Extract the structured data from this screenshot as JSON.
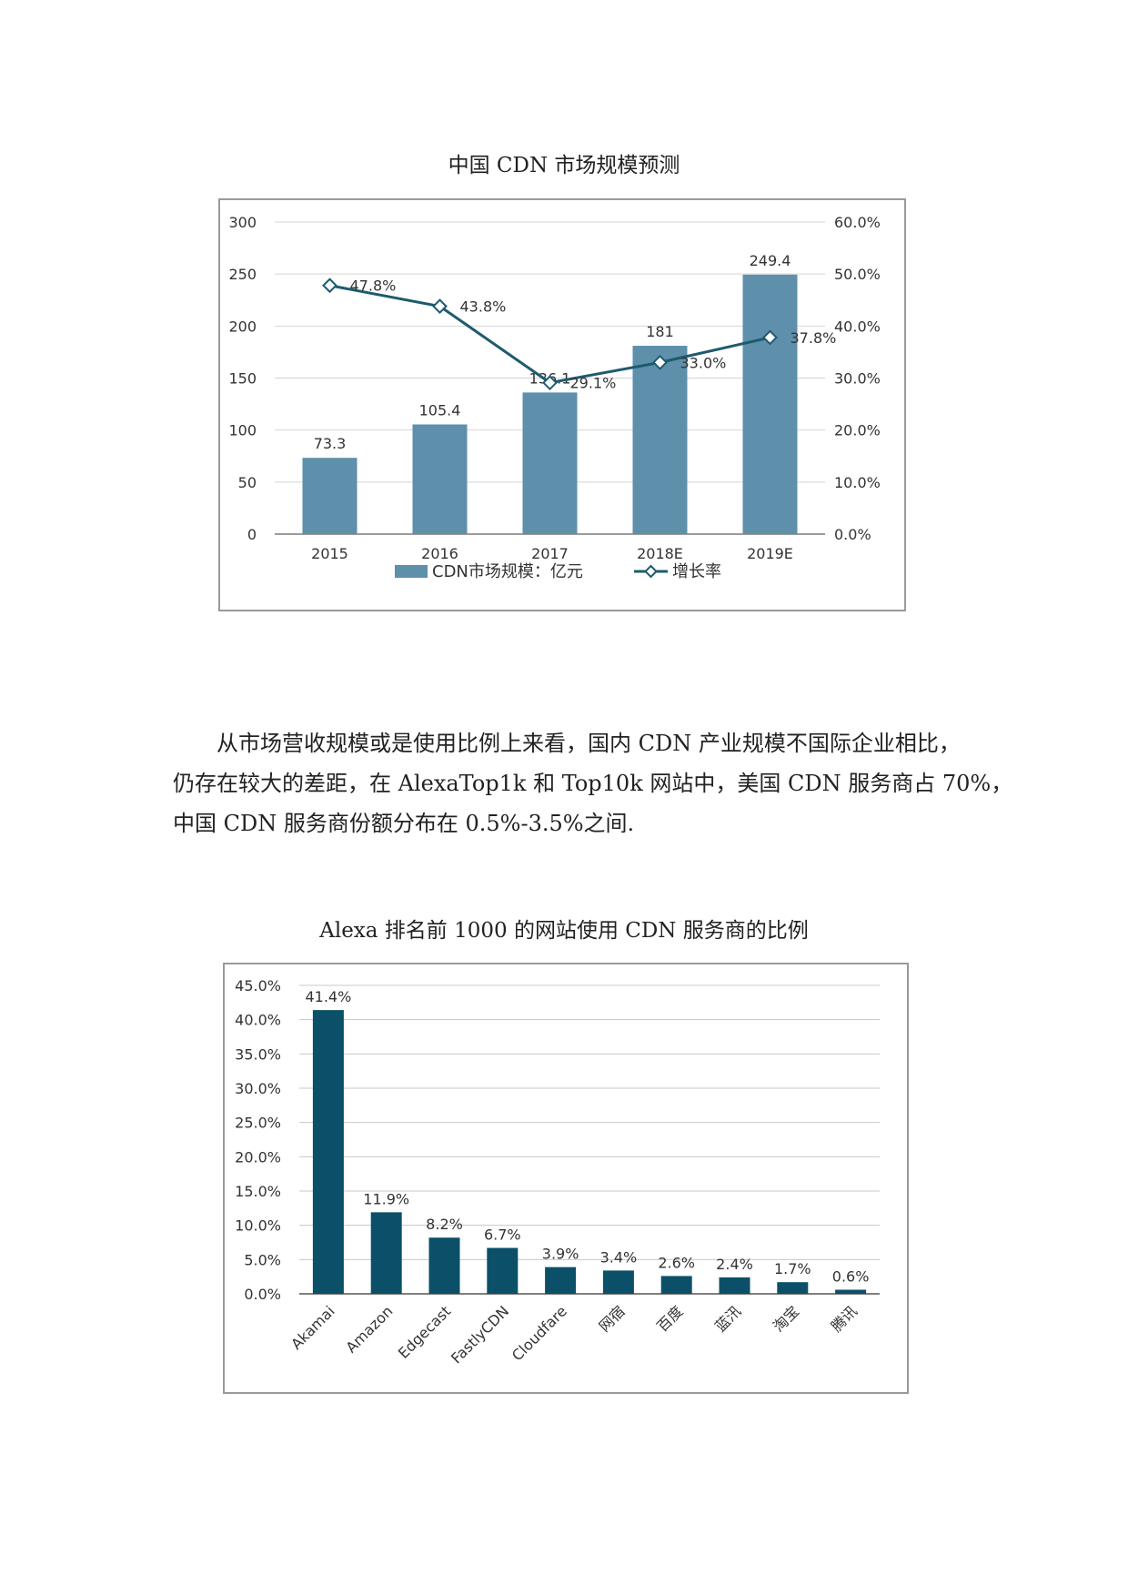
{
  "chart1": {
    "caption": "中国 CDN 市场规模预测",
    "chart_data": {
      "type": "bar",
      "categories": [
        "2015",
        "2016",
        "2017",
        "2018E",
        "2019E"
      ],
      "series": [
        {
          "name": "CDN市场规模：亿元",
          "type": "bar",
          "axis": "left",
          "values": [
            73.3,
            105.4,
            136.1,
            181,
            249.4
          ],
          "labels": [
            "73.3",
            "105.4",
            "136.1",
            "181",
            "249.4"
          ]
        },
        {
          "name": "增长率",
          "type": "line",
          "axis": "right",
          "values": [
            47.8,
            43.8,
            29.1,
            33.0,
            37.8
          ],
          "labels": [
            "47.8%",
            "43.8%",
            "29.1%",
            "33.0%",
            "37.8%"
          ]
        }
      ],
      "ylim_left": [
        0,
        300
      ],
      "ylim_right": [
        0,
        60
      ],
      "y_ticks_left": [
        "0",
        "50",
        "100",
        "150",
        "200",
        "250",
        "300"
      ],
      "y_ticks_right": [
        "0.0%",
        "10.0%",
        "20.0%",
        "30.0%",
        "40.0%",
        "50.0%",
        "60.0%"
      ],
      "grid": true,
      "legend": "bottom",
      "colors": {
        "bar": "#5e8fab",
        "line": "#1e5b6e"
      }
    }
  },
  "paragraph": {
    "lines": [
      "从市场营收规模或是使用比例上来看，国内 CDN 产业规模不国际企业相比，",
      "仍存在较大的差距，在 AlexaTop1k 和 Top10k 网站中，美国 CDN 服务商占 70%，",
      "中国 CDN 服务商份额分布在 0.5%-3.5%之间."
    ]
  },
  "chart2": {
    "caption": "Alexa 排名前 1000 的网站使用 CDN 服务商的比例",
    "chart_data": {
      "type": "bar",
      "categories": [
        "Akamai",
        "Amazon",
        "Edgecast",
        "FastlyCDN",
        "Cloudfare",
        "网宿",
        "百度",
        "蓝汛",
        "淘宝",
        "腾讯"
      ],
      "values": [
        41.4,
        11.9,
        8.2,
        6.7,
        3.9,
        3.4,
        2.6,
        2.4,
        1.7,
        0.6
      ],
      "labels": [
        "41.4%",
        "11.9%",
        "8.2%",
        "6.7%",
        "3.9%",
        "3.4%",
        "2.6%",
        "2.4%",
        "1.7%",
        "0.6%"
      ],
      "ylim": [
        0,
        45
      ],
      "y_ticks": [
        "0.0%",
        "5.0%",
        "10.0%",
        "15.0%",
        "20.0%",
        "25.0%",
        "30.0%",
        "35.0%",
        "40.0%",
        "45.0%"
      ],
      "grid": true,
      "colors": {
        "bar": "#0b5068"
      }
    }
  }
}
